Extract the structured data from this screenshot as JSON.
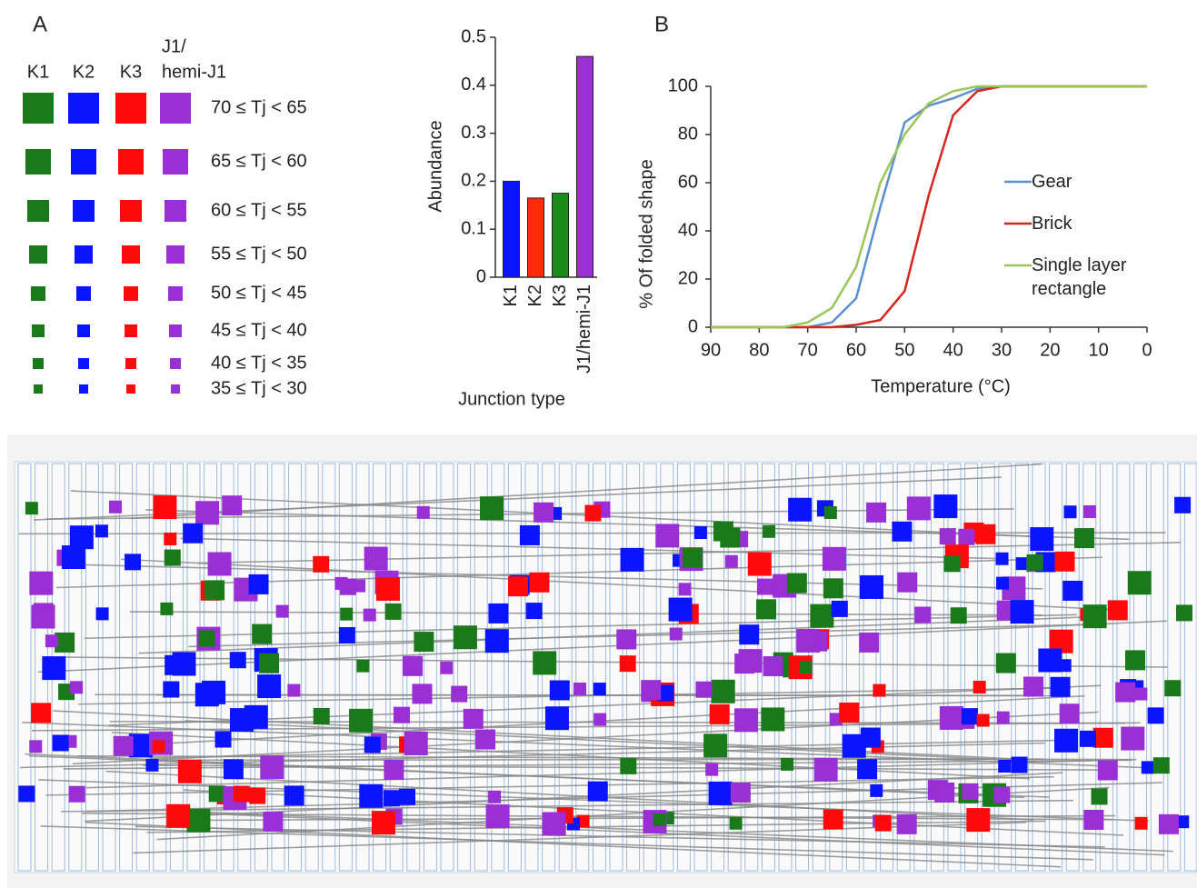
{
  "panel_labels": [
    "A",
    "B"
  ],
  "legend": {
    "columns": [
      {
        "lines": [
          "K1"
        ],
        "color": "#1a7a1a"
      },
      {
        "lines": [
          "K2"
        ],
        "color": "#0a14ff"
      },
      {
        "lines": [
          "K3"
        ],
        "color": "#ff0a0a"
      },
      {
        "lines": [
          "J1/",
          "hemi-J1"
        ],
        "color": "#9a2fd6"
      }
    ],
    "rows": [
      "70 ≤ Tj < 65",
      "65 ≤ Tj < 60",
      "60 ≤ Tj < 55",
      "55 ≤ Tj < 50",
      "50 ≤ Tj < 45",
      "45 ≤ Tj < 40",
      "40 ≤ Tj < 35",
      "35 ≤ Tj < 30"
    ]
  },
  "chart_data": [
    {
      "type": "bar",
      "xlabel": "Junction type",
      "ylabel": "Abundance",
      "categories": [
        "K1",
        "K2",
        "K3",
        "J1/hemi-J1"
      ],
      "values": [
        0.2,
        0.165,
        0.175,
        0.46
      ],
      "colors": [
        "#0a14ff",
        "#ff2a0a",
        "#1a8a1a",
        "#9a2fd6"
      ],
      "ylim": [
        0,
        0.5
      ],
      "yticks": [
        0,
        0.1,
        0.2,
        0.3,
        0.4,
        0.5
      ]
    },
    {
      "type": "line",
      "xlabel": "Temperature (°C)",
      "ylabel": "% Of folded shape",
      "x": [
        90,
        85,
        80,
        75,
        70,
        65,
        60,
        55,
        50,
        45,
        40,
        35,
        30,
        25,
        20,
        15,
        10,
        5,
        0
      ],
      "series": [
        {
          "name": "Gear",
          "color": "#5b8fd0",
          "values": [
            0,
            0,
            0,
            0,
            0,
            2,
            12,
            50,
            85,
            92,
            95,
            99,
            100,
            100,
            100,
            100,
            100,
            100,
            100
          ]
        },
        {
          "name": "Brick",
          "color": "#d4281e",
          "values": [
            0,
            0,
            0,
            0,
            0,
            0,
            1,
            3,
            15,
            55,
            88,
            98,
            100,
            100,
            100,
            100,
            100,
            100,
            100
          ]
        },
        {
          "name": "Single layer rectangle",
          "color": "#9bc45a",
          "values": [
            0,
            0,
            0,
            0,
            2,
            8,
            25,
            60,
            80,
            93,
            98,
            100,
            100,
            100,
            100,
            100,
            100,
            100,
            100
          ]
        }
      ],
      "xlim": [
        90,
        0
      ],
      "xticks": [
        90,
        80,
        70,
        60,
        50,
        40,
        30,
        20,
        10,
        0
      ],
      "ylim": [
        0,
        100
      ],
      "yticks": [
        0,
        20,
        40,
        60,
        80,
        100
      ]
    }
  ]
}
